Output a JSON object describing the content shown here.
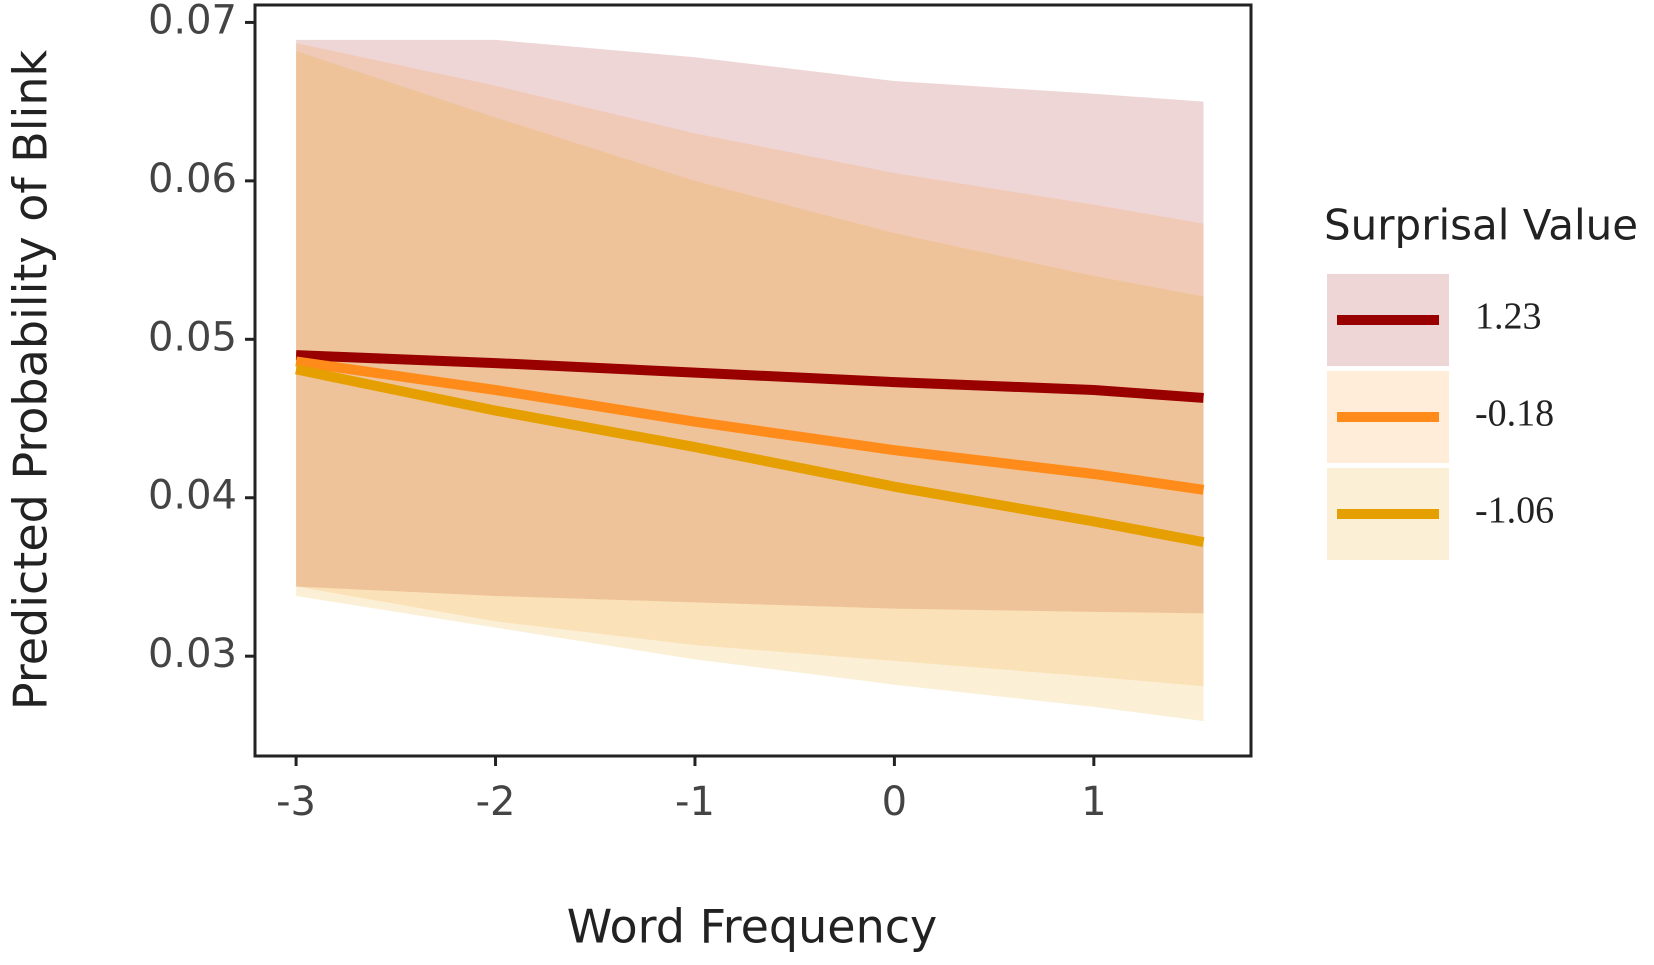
{
  "chart_data": {
    "type": "line_band",
    "x_label": "Word Frequency",
    "y_label": "Predicted Probability of Blink",
    "legend_title": "Surprisal Value",
    "x": [
      -3,
      -2,
      -1,
      0,
      1,
      1.55
    ],
    "xlim": [
      -3.206,
      1.788
    ],
    "xticks": [
      -3,
      -2,
      -1,
      0,
      1
    ],
    "ylim": [
      0.0237,
      0.0711
    ],
    "yticks": [
      0.03,
      0.04,
      0.05,
      0.06,
      0.07
    ],
    "series": [
      {
        "name": "1.23",
        "color": "#990000",
        "values": [
          0.049,
          0.0485,
          0.0479,
          0.0473,
          0.0468,
          0.0463
        ],
        "upper": [
          0.0689,
          0.0689,
          0.0678,
          0.0663,
          0.0655,
          0.065
        ],
        "lower": [
          0.0344,
          0.0338,
          0.0334,
          0.033,
          0.0328,
          0.0327
        ]
      },
      {
        "name": "-0.18",
        "color": "#ff8c1a",
        "values": [
          0.0486,
          0.0468,
          0.0448,
          0.043,
          0.0415,
          0.0405
        ],
        "upper": [
          0.0687,
          0.066,
          0.063,
          0.0605,
          0.0585,
          0.0573
        ],
        "lower": [
          0.0344,
          0.0322,
          0.0307,
          0.0297,
          0.0287,
          0.0281
        ]
      },
      {
        "name": "-1.06",
        "color": "#e69f00",
        "values": [
          0.0481,
          0.0455,
          0.0432,
          0.0407,
          0.0385,
          0.0372
        ],
        "upper": [
          0.0682,
          0.064,
          0.06,
          0.0567,
          0.054,
          0.0527
        ],
        "lower": [
          0.0338,
          0.0318,
          0.0298,
          0.0282,
          0.0268,
          0.0259
        ]
      }
    ]
  }
}
